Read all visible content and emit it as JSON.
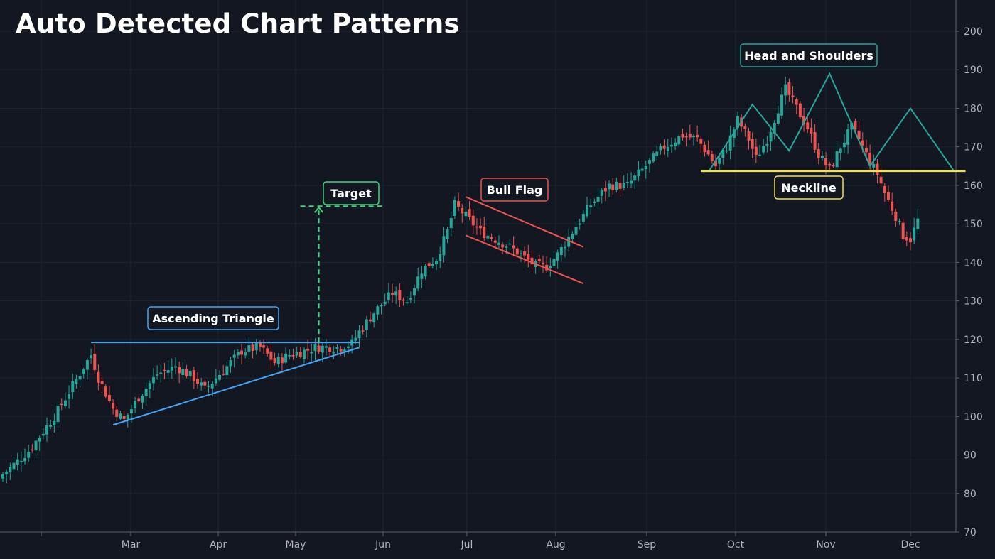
{
  "colors": {
    "background": "#131722",
    "grid": "#1f2430",
    "up": "#26a69a",
    "down": "#ef5350",
    "triangle": "#42a5f5",
    "target": "#3fd37a",
    "flag": "#ef5350",
    "head_shoulders": "#26a69a",
    "neckline": "#f2e14a",
    "axis_text": "#b2b5be"
  },
  "chart_data": {
    "type": "candlestick",
    "title": "Auto Detected Chart Patterns",
    "xlabel": "",
    "ylabel": "",
    "ylim": [
      70,
      200
    ],
    "y_ticks": [
      200,
      190,
      180,
      170,
      160,
      150,
      140,
      130,
      120,
      110,
      100,
      90,
      80,
      70
    ],
    "y_axis_side": "right",
    "x_tick_labels": [
      "Mar",
      "Apr",
      "May",
      "Jun",
      "Jul",
      "Aug",
      "Sep",
      "Oct",
      "Nov",
      "Dec"
    ],
    "grid": true,
    "close_path": [
      [
        0,
        85
      ],
      [
        7,
        91
      ],
      [
        14,
        100
      ],
      [
        19,
        108
      ],
      [
        24,
        116
      ],
      [
        26,
        110
      ],
      [
        30,
        102
      ],
      [
        33,
        99
      ],
      [
        37,
        105
      ],
      [
        42,
        111
      ],
      [
        47,
        113
      ],
      [
        52,
        110
      ],
      [
        55,
        107
      ],
      [
        60,
        112
      ],
      [
        65,
        117
      ],
      [
        70,
        118
      ],
      [
        74,
        114
      ],
      [
        78,
        116
      ],
      [
        82,
        117
      ],
      [
        86,
        118
      ],
      [
        89,
        118
      ],
      [
        92,
        118
      ],
      [
        95,
        119
      ],
      [
        97,
        122
      ],
      [
        101,
        127
      ],
      [
        106,
        132
      ],
      [
        110,
        130
      ],
      [
        114,
        138
      ],
      [
        118,
        141
      ],
      [
        121,
        148
      ],
      [
        123,
        155
      ],
      [
        126,
        152
      ],
      [
        130,
        148
      ],
      [
        134,
        146
      ],
      [
        138,
        144
      ],
      [
        141,
        142
      ],
      [
        145,
        139
      ],
      [
        148,
        139
      ],
      [
        151,
        142
      ],
      [
        155,
        148
      ],
      [
        160,
        155
      ],
      [
        165,
        160
      ],
      [
        170,
        160
      ],
      [
        175,
        165
      ],
      [
        180,
        170
      ],
      [
        185,
        173
      ],
      [
        189,
        172
      ],
      [
        192,
        168
      ],
      [
        194,
        165
      ],
      [
        197,
        170
      ],
      [
        200,
        177
      ],
      [
        203,
        172
      ],
      [
        205,
        167
      ],
      [
        208,
        172
      ],
      [
        211,
        180
      ],
      [
        213,
        185
      ],
      [
        216,
        180
      ],
      [
        219,
        175
      ],
      [
        222,
        168
      ],
      [
        225,
        164
      ],
      [
        228,
        170
      ],
      [
        231,
        175
      ],
      [
        233,
        172
      ],
      [
        236,
        166
      ],
      [
        238,
        163
      ],
      [
        240,
        158
      ],
      [
        243,
        152
      ],
      [
        245,
        147
      ],
      [
        247,
        146
      ],
      [
        249,
        151
      ]
    ],
    "patterns": [
      {
        "name": "Ascending Triangle",
        "resistance": [
          [
            24,
            119.2
          ],
          [
            97,
            119.2
          ]
        ],
        "support": [
          [
            30,
            97.8
          ],
          [
            97,
            117.9
          ]
        ]
      },
      {
        "name": "Target",
        "from_price": 119.2,
        "to_price": 154.6,
        "day": 86
      },
      {
        "name": "Bull Flag",
        "upper": [
          [
            126,
            157
          ],
          [
            158,
            144
          ]
        ],
        "lower": [
          [
            126,
            147
          ],
          [
            158,
            134.5
          ]
        ]
      },
      {
        "name": "Head and Shoulders",
        "zigzag": [
          [
            192,
            163.5
          ],
          [
            204,
            181
          ],
          [
            214,
            169
          ],
          [
            225,
            189
          ],
          [
            236,
            165
          ],
          [
            247,
            180
          ],
          [
            259,
            163.5
          ]
        ],
        "neckline": {
          "label": "Neckline",
          "price": 163.7,
          "start_day": 190,
          "end_day": 262
        }
      }
    ]
  },
  "labels": {
    "ascending_triangle": "Ascending Triangle",
    "target": "Target",
    "bull_flag": "Bull Flag",
    "head_shoulders": "Head and Shoulders",
    "neckline": "Neckline"
  }
}
